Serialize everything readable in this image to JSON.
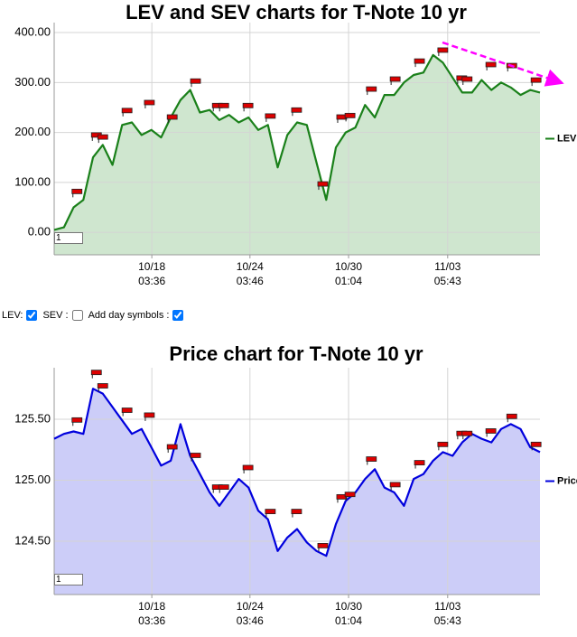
{
  "chart_data": [
    {
      "type": "line",
      "title": "LEV and SEV charts for T-Note 10 yr",
      "x": [
        0,
        2,
        4,
        6,
        8,
        10,
        12,
        14,
        16,
        18,
        20,
        22,
        24,
        26,
        28,
        30,
        32,
        34,
        36,
        38,
        40,
        42,
        44,
        46,
        48,
        50,
        52,
        54,
        56,
        58,
        60,
        62,
        64,
        66,
        68,
        70,
        72,
        74,
        76,
        78,
        80,
        82,
        84,
        86,
        88,
        90,
        92,
        94,
        96,
        98,
        100
      ],
      "series": [
        {
          "name": "LEV",
          "color": "#1a801a",
          "fill": "#cfe6cf",
          "values": [
            5,
            10,
            50,
            65,
            150,
            175,
            135,
            215,
            220,
            195,
            205,
            190,
            230,
            265,
            285,
            240,
            245,
            225,
            235,
            220,
            230,
            205,
            215,
            130,
            195,
            220,
            215,
            140,
            65,
            170,
            200,
            210,
            255,
            230,
            275,
            275,
            300,
            315,
            320,
            355,
            340,
            310,
            280,
            280,
            305,
            285,
            300,
            290,
            275,
            285,
            280
          ]
        }
      ],
      "day_symbols": {
        "x": [
          4.6,
          8.6,
          9.9,
          14.9,
          19.5,
          24.2,
          29.0,
          33.5,
          34.8,
          39.8,
          44.4,
          49.8,
          55.2,
          59.1,
          60.8,
          65.2,
          70.1,
          75.1,
          79.9,
          83.8,
          84.9,
          89.8,
          94.1,
          99.1
        ],
        "values": [
          81,
          194,
          190,
          243,
          259,
          230,
          302,
          253,
          253,
          253,
          232,
          244,
          96,
          230,
          233,
          286,
          306,
          342,
          364,
          308,
          306,
          335,
          333,
          304
        ]
      },
      "xlim": [
        0,
        100
      ],
      "xticks": [
        {
          "value": 20.1,
          "label": "10/18 03:36"
        },
        {
          "value": 40.3,
          "label": "10/24 03:46"
        },
        {
          "value": 60.6,
          "label": "10/30 01:04"
        },
        {
          "value": 81,
          "label": "11/03 05:43"
        }
      ],
      "ylim": [
        -45,
        420
      ],
      "yticks": [
        {
          "value": 0,
          "label": "0.00"
        },
        {
          "value": 100,
          "label": "100.00"
        },
        {
          "value": 200,
          "label": "200.00"
        },
        {
          "value": 300,
          "label": "300.00"
        },
        {
          "value": 400,
          "label": "400.00"
        }
      ],
      "grid": true,
      "legend": "right",
      "input_value": "1"
    },
    {
      "type": "line",
      "title": "Price chart for T-Note 10 yr",
      "x": [
        0,
        2,
        4,
        6,
        8,
        10,
        12,
        14,
        16,
        18,
        20,
        22,
        24,
        26,
        28,
        30,
        32,
        34,
        36,
        38,
        40,
        42,
        44,
        46,
        48,
        50,
        52,
        54,
        56,
        58,
        60,
        62,
        64,
        66,
        68,
        70,
        72,
        74,
        76,
        78,
        80,
        82,
        84,
        86,
        88,
        90,
        92,
        94,
        96,
        98,
        100
      ],
      "series": [
        {
          "name": "Price",
          "color": "#0000dd",
          "fill": "#cccdf8",
          "values": [
            125.34,
            125.38,
            125.4,
            125.38,
            125.75,
            125.71,
            125.6,
            125.49,
            125.38,
            125.42,
            125.27,
            125.12,
            125.16,
            125.46,
            125.2,
            125.05,
            124.9,
            124.79,
            124.9,
            125.01,
            124.94,
            124.75,
            124.68,
            124.42,
            124.53,
            124.6,
            124.49,
            124.42,
            124.38,
            124.64,
            124.83,
            124.9,
            125.01,
            125.09,
            124.94,
            124.9,
            124.79,
            125.01,
            125.05,
            125.16,
            125.23,
            125.2,
            125.31,
            125.38,
            125.34,
            125.31,
            125.42,
            125.46,
            125.42,
            125.27,
            125.23
          ]
        }
      ],
      "day_symbols": {
        "x": [
          4.6,
          8.6,
          9.9,
          14.9,
          19.5,
          24.2,
          29.0,
          33.5,
          34.8,
          39.8,
          44.4,
          49.8,
          55.2,
          59.1,
          60.8,
          65.2,
          70.1,
          75.1,
          79.9,
          83.8,
          84.9,
          89.8,
          94.1,
          99.1
        ],
        "values": [
          125.49,
          125.88,
          125.77,
          125.57,
          125.53,
          125.27,
          125.2,
          124.94,
          124.94,
          125.1,
          124.74,
          124.74,
          124.46,
          124.86,
          124.88,
          125.17,
          124.96,
          125.14,
          125.29,
          125.38,
          125.38,
          125.4,
          125.52,
          125.29
        ]
      },
      "xlim": [
        0,
        100
      ],
      "xticks": [
        {
          "value": 20.1,
          "label": "10/18 03:36"
        },
        {
          "value": 40.3,
          "label": "10/24 03:46"
        },
        {
          "value": 60.6,
          "label": "10/30 01:04"
        },
        {
          "value": 81,
          "label": "11/03 05:43"
        }
      ],
      "ylim": [
        124.063,
        125.922
      ],
      "yticks": [
        {
          "value": 124.5,
          "label": "124.50"
        },
        {
          "value": 125,
          "label": "125.00"
        },
        {
          "value": 125.5,
          "label": "125.50"
        }
      ],
      "grid": true,
      "legend": "right",
      "input_value": "1"
    }
  ],
  "controls": {
    "lev_label": "LEV:",
    "lev_checked": true,
    "sev_label": "SEV :",
    "sev_checked": false,
    "day_symbols_label": "Add day symbols :",
    "day_symbols_checked": true
  }
}
